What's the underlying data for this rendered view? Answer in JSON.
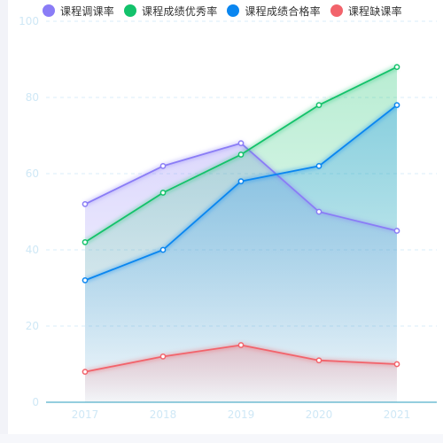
{
  "chart_data": {
    "type": "line",
    "area": true,
    "categories": [
      "2017",
      "2018",
      "2019",
      "2020",
      "2021"
    ],
    "series": [
      {
        "name": "课程调课率",
        "values": [
          52,
          62,
          68,
          50,
          45
        ],
        "color": "#8a7cf6"
      },
      {
        "name": "课程成绩优秀率",
        "values": [
          42,
          55,
          65,
          78,
          88
        ],
        "color": "#13c26b"
      },
      {
        "name": "课程成绩合格率",
        "values": [
          32,
          40,
          58,
          62,
          78
        ],
        "color": "#0a86f0"
      },
      {
        "name": "课程缺课率",
        "values": [
          8,
          12,
          15,
          11,
          10
        ],
        "color": "#f2636b"
      }
    ],
    "yticks": [
      "0",
      "20",
      "40",
      "60",
      "80",
      "100"
    ],
    "ylim": [
      0,
      100
    ],
    "grid": true,
    "legend_position": "top"
  },
  "colors": {
    "axis_label": "#cfe8f6",
    "grid": "#d9edf8",
    "axis_line": "#2a9dbd"
  }
}
